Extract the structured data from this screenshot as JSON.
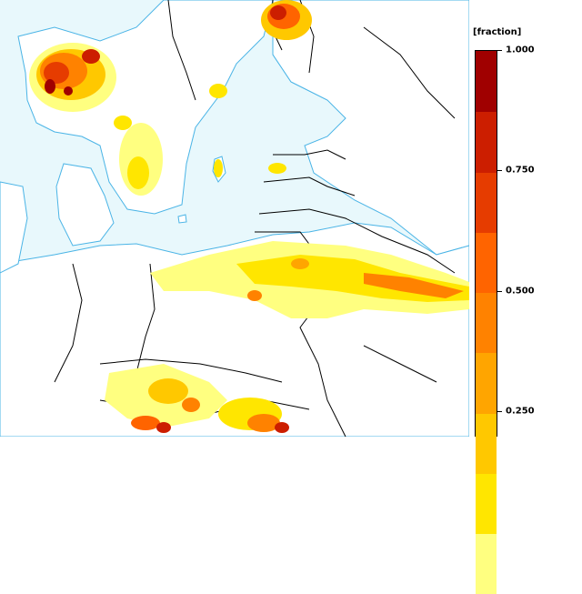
{
  "legend": {
    "title": "[fraction]",
    "ticks": [
      "1.000",
      "0.750",
      "0.500",
      "0.250"
    ],
    "colors": [
      "#ffff80",
      "#ffe600",
      "#ffc800",
      "#ffa500",
      "#ff8200",
      "#ff6400",
      "#e63c00",
      "#cc1e00",
      "#a00000"
    ]
  },
  "map": {
    "sea_color": "#e8f8fc",
    "land_color": "#ffffff",
    "coast_color": "#4ab4e6",
    "border_color": "#000000"
  }
}
